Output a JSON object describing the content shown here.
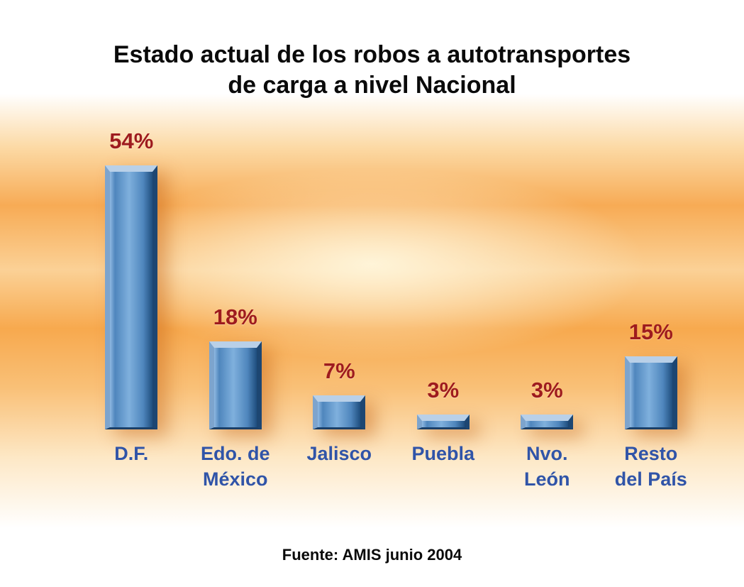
{
  "title": {
    "line1": "Estado actual de los robos a autotransportes",
    "line2": "de carga a nivel Nacional"
  },
  "footer": {
    "source": "Fuente: AMIS junio 2004"
  },
  "colors": {
    "value_label": "#9e1b1e",
    "category_label": "#3054a8",
    "bar_light": "#8fb9e2",
    "bar_mid": "#4f86bd",
    "bar_dark": "#1f4e7e",
    "bar_edge_light": "#b9d0e8",
    "background_orange": "#f7a94e"
  },
  "chart_data": {
    "type": "bar",
    "title": "Estado actual de los robos a autotransportes de carga a nivel Nacional",
    "categories": [
      "D.F.",
      "Edo. de\nMéxico",
      "Jalisco",
      "Puebla",
      "Nvo.\nLeón",
      "Resto\ndel País"
    ],
    "values": [
      54,
      18,
      7,
      3,
      3,
      15
    ],
    "value_labels": [
      "54%",
      "18%",
      "7%",
      "3%",
      "3%",
      "15%"
    ],
    "unit": "%",
    "ylim": [
      0,
      54
    ],
    "xlabel": "",
    "ylabel": "",
    "grid": false,
    "legend": "none",
    "source": "Fuente: AMIS junio 2004"
  }
}
